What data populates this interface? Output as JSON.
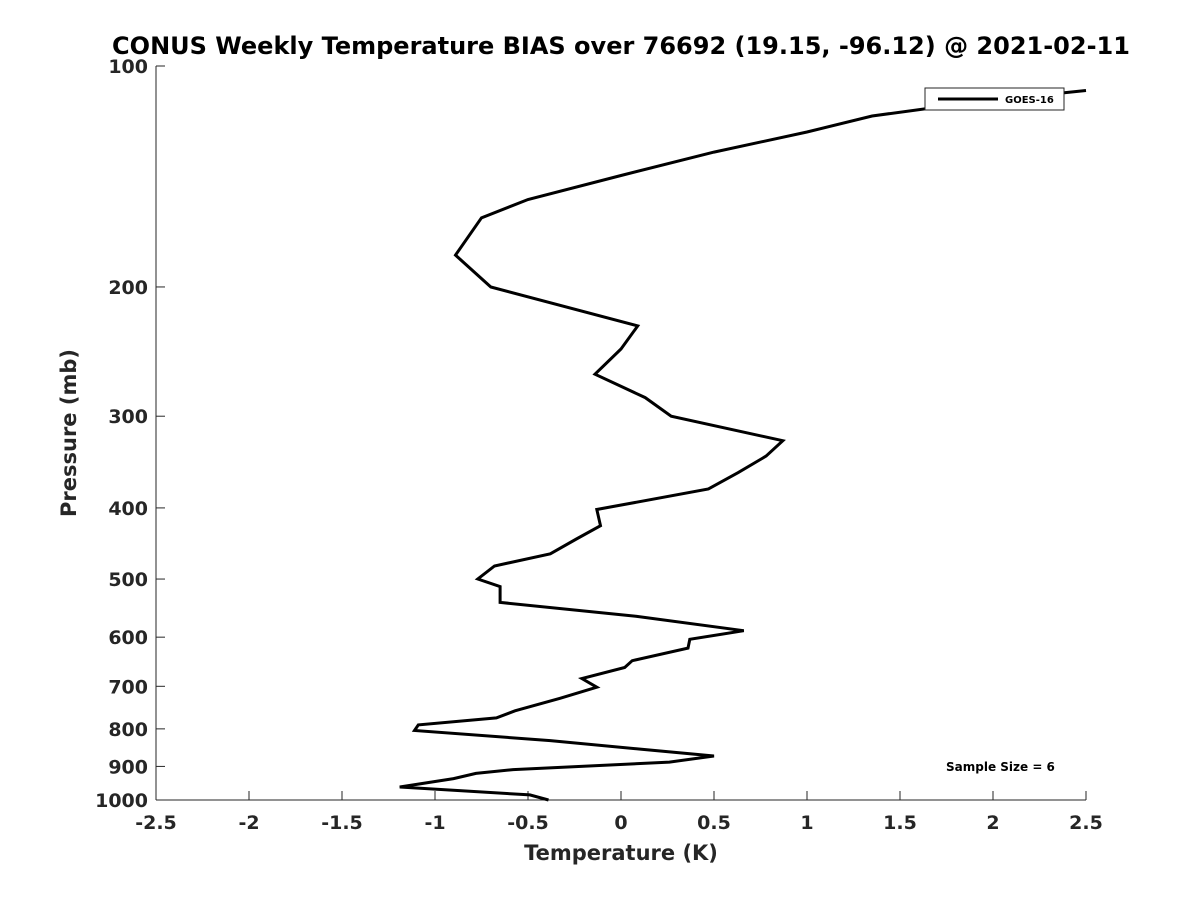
{
  "chart_data": {
    "type": "line",
    "title": "CONUS Weekly Temperature BIAS over 76692 (19.15, -96.12) @ 2021-02-11",
    "xlabel": "Temperature (K)",
    "ylabel": "Pressure (mb)",
    "xlim": [
      -2.5,
      2.5
    ],
    "ylim": [
      1000,
      100
    ],
    "y_scale": "log",
    "x_ticks": [
      -2.5,
      -2,
      -1.5,
      -1,
      -0.5,
      0,
      0.5,
      1,
      1.5,
      2,
      2.5
    ],
    "x_tick_labels": [
      "-2.5",
      "-2",
      "-1.5",
      "-1",
      "-0.5",
      "0",
      "0.5",
      "1",
      "1.5",
      "2",
      "2.5"
    ],
    "y_ticks": [
      100,
      200,
      300,
      400,
      500,
      600,
      700,
      800,
      900,
      1000
    ],
    "y_tick_labels": [
      "100",
      "200",
      "300",
      "400",
      "500",
      "600",
      "700",
      "800",
      "900",
      "1000"
    ],
    "grid": false,
    "legend": {
      "placement": "top-right",
      "entries": [
        "GOES-16"
      ]
    },
    "annotation": "Sample Size = 6",
    "series": [
      {
        "name": "GOES-16",
        "color": "#000000",
        "points": [
          {
            "x": 2.5,
            "y": 108
          },
          {
            "x": 1.9,
            "y": 112
          },
          {
            "x": 1.35,
            "y": 117
          },
          {
            "x": 1.0,
            "y": 123
          },
          {
            "x": 0.5,
            "y": 131
          },
          {
            "x": 0.0,
            "y": 141
          },
          {
            "x": -0.5,
            "y": 152
          },
          {
            "x": -0.75,
            "y": 161
          },
          {
            "x": -0.89,
            "y": 181
          },
          {
            "x": -0.7,
            "y": 200
          },
          {
            "x": 0.09,
            "y": 226
          },
          {
            "x": 0.0,
            "y": 243
          },
          {
            "x": -0.14,
            "y": 263
          },
          {
            "x": 0.13,
            "y": 283
          },
          {
            "x": 0.27,
            "y": 300
          },
          {
            "x": 0.87,
            "y": 324
          },
          {
            "x": 0.78,
            "y": 340
          },
          {
            "x": 0.63,
            "y": 358
          },
          {
            "x": 0.47,
            "y": 377
          },
          {
            "x": -0.13,
            "y": 402
          },
          {
            "x": -0.11,
            "y": 423
          },
          {
            "x": -0.24,
            "y": 441
          },
          {
            "x": -0.38,
            "y": 462
          },
          {
            "x": -0.68,
            "y": 480
          },
          {
            "x": -0.77,
            "y": 500
          },
          {
            "x": -0.65,
            "y": 512
          },
          {
            "x": -0.65,
            "y": 538
          },
          {
            "x": 0.08,
            "y": 562
          },
          {
            "x": 0.66,
            "y": 588
          },
          {
            "x": 0.37,
            "y": 604
          },
          {
            "x": 0.36,
            "y": 621
          },
          {
            "x": 0.06,
            "y": 646
          },
          {
            "x": 0.02,
            "y": 660
          },
          {
            "x": -0.21,
            "y": 683
          },
          {
            "x": -0.13,
            "y": 702
          },
          {
            "x": -0.33,
            "y": 727
          },
          {
            "x": -0.57,
            "y": 756
          },
          {
            "x": -0.67,
            "y": 773
          },
          {
            "x": -1.09,
            "y": 790
          },
          {
            "x": -1.11,
            "y": 804
          },
          {
            "x": -0.38,
            "y": 830
          },
          {
            "x": 0.11,
            "y": 853
          },
          {
            "x": 0.5,
            "y": 871
          },
          {
            "x": 0.26,
            "y": 888
          },
          {
            "x": -0.58,
            "y": 909
          },
          {
            "x": -0.78,
            "y": 920
          },
          {
            "x": -0.9,
            "y": 935
          },
          {
            "x": -1.19,
            "y": 960
          },
          {
            "x": -0.49,
            "y": 984
          },
          {
            "x": -0.39,
            "y": 1000
          }
        ]
      }
    ]
  }
}
